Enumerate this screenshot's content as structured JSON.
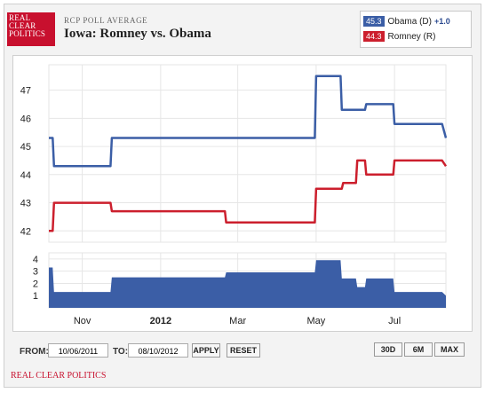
{
  "logo": {
    "lines": [
      "REAL",
      "CLEAR",
      "POLITICS"
    ]
  },
  "header": {
    "subtitle": "RCP POLL AVERAGE",
    "title": "Iowa: Romney vs. Obama"
  },
  "legend": [
    {
      "value": "45.3",
      "name": "Obama (D)",
      "change": "+1.0",
      "color": "#3b5ea6"
    },
    {
      "value": "44.3",
      "name": "Romney (R)",
      "change": "",
      "color": "#cc1f2d"
    }
  ],
  "controls": {
    "from_label": "FROM:",
    "from_value": "10/06/2011",
    "to_label": "TO:",
    "to_value": "08/10/2012",
    "apply": "APPLY",
    "reset": "RESET",
    "ranges": [
      "30D",
      "6M",
      "MAX"
    ]
  },
  "footer": "REAL CLEAR POLITICS",
  "chart_data": {
    "type": "line",
    "x_range": [
      "2011-10-06",
      "2012-08-10"
    ],
    "x_ticks": [
      {
        "date": "2011-11-01",
        "label": "Nov",
        "bold": false
      },
      {
        "date": "2012-01-01",
        "label": "2012",
        "bold": true
      },
      {
        "date": "2012-03-01",
        "label": "Mar",
        "bold": false
      },
      {
        "date": "2012-05-01",
        "label": "May",
        "bold": false
      },
      {
        "date": "2012-07-01",
        "label": "Jul",
        "bold": false
      }
    ],
    "ylim": [
      41.6,
      47.9
    ],
    "y_ticks": [
      42,
      43,
      44,
      45,
      46,
      47
    ],
    "grid": true,
    "series": [
      {
        "name": "Obama (D)",
        "color": "#3b5ea6",
        "points": [
          [
            "2011-10-06",
            45.3
          ],
          [
            "2011-10-09",
            45.3
          ],
          [
            "2011-10-10",
            44.3
          ],
          [
            "2011-11-23",
            44.3
          ],
          [
            "2011-11-24",
            45.3
          ],
          [
            "2012-04-30",
            45.3
          ],
          [
            "2012-05-01",
            47.5
          ],
          [
            "2012-05-20",
            47.5
          ],
          [
            "2012-05-21",
            46.3
          ],
          [
            "2012-06-08",
            46.3
          ],
          [
            "2012-06-09",
            46.5
          ],
          [
            "2012-06-30",
            46.5
          ],
          [
            "2012-07-01",
            45.8
          ],
          [
            "2012-08-07",
            45.8
          ],
          [
            "2012-08-10",
            45.3
          ]
        ]
      },
      {
        "name": "Romney (R)",
        "color": "#cc1f2d",
        "points": [
          [
            "2011-10-06",
            42.0
          ],
          [
            "2011-10-09",
            42.0
          ],
          [
            "2011-10-10",
            43.0
          ],
          [
            "2011-11-23",
            43.0
          ],
          [
            "2011-11-24",
            42.7
          ],
          [
            "2012-02-20",
            42.7
          ],
          [
            "2012-02-21",
            42.3
          ],
          [
            "2012-04-30",
            42.3
          ],
          [
            "2012-05-01",
            43.5
          ],
          [
            "2012-05-21",
            43.5
          ],
          [
            "2012-05-22",
            43.7
          ],
          [
            "2012-06-01",
            43.7
          ],
          [
            "2012-06-02",
            44.5
          ],
          [
            "2012-06-08",
            44.5
          ],
          [
            "2012-06-09",
            44.0
          ],
          [
            "2012-06-30",
            44.0
          ],
          [
            "2012-07-01",
            44.5
          ],
          [
            "2012-08-07",
            44.5
          ],
          [
            "2012-08-10",
            44.3
          ]
        ]
      }
    ],
    "poll_count": {
      "type": "area",
      "color": "#3b5ea6",
      "ylim": [
        0,
        4.5
      ],
      "y_ticks": [
        1,
        2,
        3,
        4
      ],
      "points": [
        [
          "2011-10-06",
          3.3
        ],
        [
          "2011-10-09",
          3.3
        ],
        [
          "2011-10-10",
          1.3
        ],
        [
          "2011-11-23",
          1.3
        ],
        [
          "2011-11-24",
          2.5
        ],
        [
          "2012-02-20",
          2.5
        ],
        [
          "2012-02-21",
          2.9
        ],
        [
          "2012-04-30",
          2.9
        ],
        [
          "2012-05-01",
          3.9
        ],
        [
          "2012-05-20",
          3.9
        ],
        [
          "2012-05-21",
          2.4
        ],
        [
          "2012-06-01",
          2.4
        ],
        [
          "2012-06-02",
          1.7
        ],
        [
          "2012-06-08",
          1.7
        ],
        [
          "2012-06-09",
          2.4
        ],
        [
          "2012-06-30",
          2.4
        ],
        [
          "2012-07-01",
          1.3
        ],
        [
          "2012-08-07",
          1.3
        ],
        [
          "2012-08-10",
          1.0
        ]
      ]
    }
  }
}
